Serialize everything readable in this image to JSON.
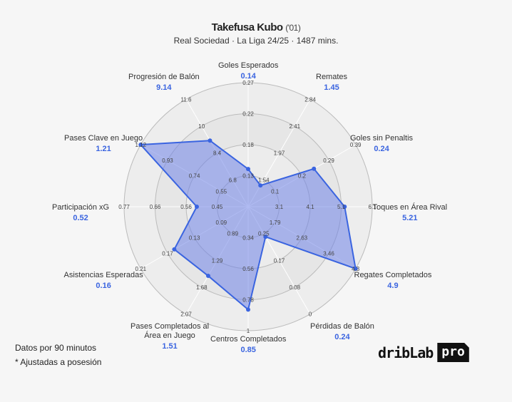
{
  "header": {
    "player": "Takefusa Kubo",
    "birth_year": "('01)",
    "subtitle": "Real Sociedad · La Liga 24/25 · 1487 mins."
  },
  "footer": {
    "note1": "Datos por 90 minutos",
    "note2": "* Ajustadas a posesión",
    "logo_text": "dribLab",
    "logo_badge": "pro"
  },
  "colors": {
    "accent": "#3a64e0",
    "fill": "#6f83e8",
    "ring": "#bbbbbb",
    "background": "#f6f6f6"
  },
  "chart_data": {
    "type": "radar",
    "title": "Takefusa Kubo ('01)",
    "subtitle": "Real Sociedad · La Liga 24/25 · 1487 mins.",
    "axes": [
      {
        "label": "Goles Esperados",
        "value": 0.14,
        "ticks": [
          "0.13",
          "0.18",
          "0.22",
          "0.27"
        ]
      },
      {
        "label": "Remates",
        "value": 1.45,
        "ticks": [
          "1.54",
          "1.97",
          "2.41",
          "2.84"
        ]
      },
      {
        "label": "Goles sin Penaltis",
        "value": 0.24,
        "ticks": [
          "0.1",
          "0.2",
          "0.29",
          "0.39"
        ]
      },
      {
        "label": "Toques en Área Rival",
        "value": 5.21,
        "ticks": [
          "3.1",
          "4.1",
          "5.1",
          "6.1"
        ]
      },
      {
        "label": "Regates Completados",
        "value": 4.9,
        "ticks": [
          "1.79",
          "2.63",
          "3.46",
          "4.3"
        ]
      },
      {
        "label": "Pérdidas de Balón",
        "value": 0.24,
        "ticks": [
          "0.25",
          "0.17",
          "0.08",
          "0"
        ]
      },
      {
        "label": "Centros Completados",
        "value": 0.85,
        "ticks": [
          "0.34",
          "0.56",
          "0.78",
          "1"
        ]
      },
      {
        "label": "Pases Completados al\nÁrea en Juego",
        "value": 1.51,
        "ticks": [
          "0.89",
          "1.29",
          "1.68",
          "2.07"
        ]
      },
      {
        "label": "Asistencias Esperadas",
        "value": 0.16,
        "ticks": [
          "0.09",
          "0.13",
          "0.17",
          "0.21"
        ]
      },
      {
        "label": "Participación xG",
        "value": 0.52,
        "ticks": [
          "0.45",
          "0.56",
          "0.66",
          "0.77"
        ]
      },
      {
        "label": "Pases Clave en Juego",
        "value": 1.21,
        "ticks": [
          "0.55",
          "0.74",
          "0.93",
          "1.12"
        ]
      },
      {
        "label": "Progresión de Balón",
        "value": 9.14,
        "ticks": [
          "6.8",
          "8.4",
          "10",
          "11.6"
        ]
      }
    ],
    "radial_rings": 4,
    "grid": true
  }
}
